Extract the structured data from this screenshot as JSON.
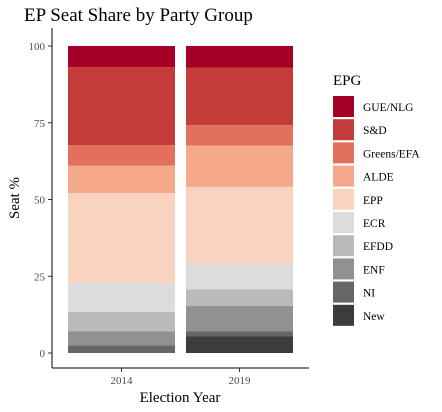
{
  "chart_data": {
    "type": "bar",
    "stacked": true,
    "title": "EP Seat Share by Party Group",
    "xlabel": "Election Year",
    "ylabel": "Seat %",
    "ylim": [
      0,
      100
    ],
    "yticks": [
      0,
      25,
      50,
      75,
      100
    ],
    "categories": [
      "2014",
      "2019"
    ],
    "legend_title": "EPG",
    "legend_position": "right",
    "grid": false,
    "series": [
      {
        "name": "New",
        "color": "#3c3c3c",
        "values": [
          0.0,
          5.5
        ]
      },
      {
        "name": "NI",
        "color": "#666666",
        "values": [
          2.5,
          1.5
        ]
      },
      {
        "name": "ENF",
        "color": "#919191",
        "values": [
          4.5,
          8.3
        ]
      },
      {
        "name": "EFDD",
        "color": "#bababa",
        "values": [
          6.4,
          5.4
        ]
      },
      {
        "name": "ECR",
        "color": "#dcdcdc",
        "values": [
          9.3,
          8.2
        ]
      },
      {
        "name": "EPP",
        "color": "#f8d3c0",
        "values": [
          29.4,
          25.2
        ]
      },
      {
        "name": "ALDE",
        "color": "#f4a98a",
        "values": [
          8.9,
          13.5
        ]
      },
      {
        "name": "Greens/EFA",
        "color": "#e2705a",
        "values": [
          6.7,
          6.6
        ]
      },
      {
        "name": "S&D",
        "color": "#c43c39",
        "values": [
          25.4,
          18.8
        ]
      },
      {
        "name": "GUE/NLG",
        "color": "#a50026",
        "values": [
          6.9,
          7.0
        ]
      }
    ]
  }
}
